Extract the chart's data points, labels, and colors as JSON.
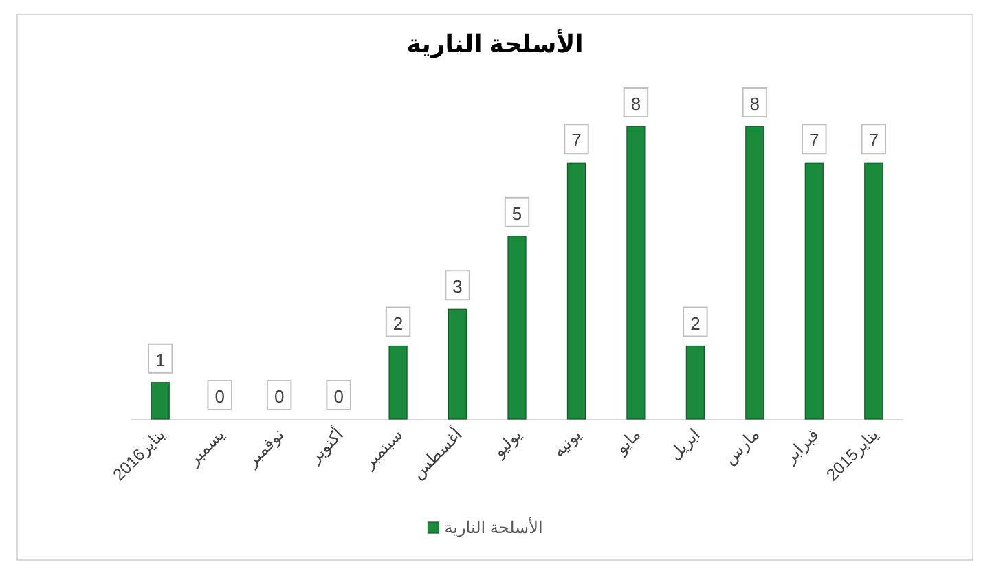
{
  "chart_data": {
    "type": "bar",
    "title": "الأسلحة النارية",
    "categories": [
      "يناير2016",
      "يسمبر",
      "نوفمبر",
      "أكتوبر",
      "سبتمبر",
      "أغسطس",
      "يوليو",
      "يونيه",
      "مايو",
      "ابريل",
      "مارس",
      "فبراير",
      "يناير2015"
    ],
    "series": [
      {
        "name": "الأسلحة النارية",
        "color": "#1a8a3c",
        "values": [
          1,
          0,
          0,
          0,
          2,
          3,
          5,
          7,
          8,
          2,
          8,
          7,
          7
        ]
      }
    ],
    "data_labels": true,
    "legend": "bottom"
  }
}
